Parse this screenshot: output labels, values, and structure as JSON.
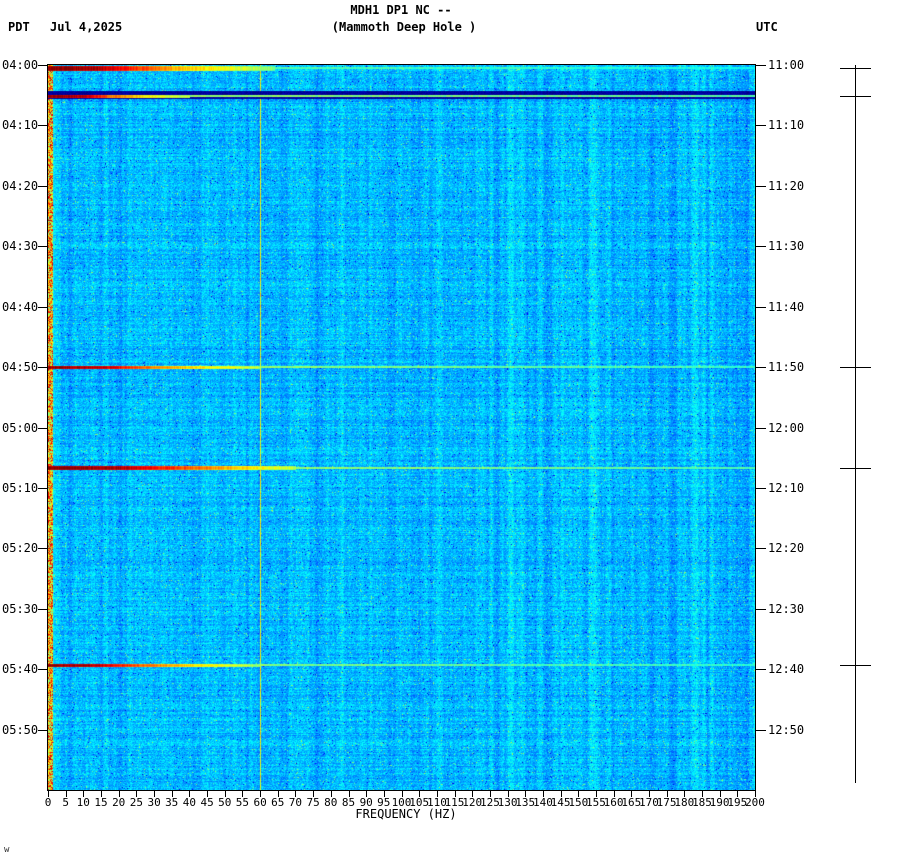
{
  "header": {
    "tz_left": "PDT",
    "date": "Jul 4,2025",
    "title_line1": "MDH1 DP1 NC --",
    "title_line2": "(Mammoth Deep Hole )",
    "tz_right": "UTC"
  },
  "footer": {
    "xlabel": "FREQUENCY (HZ)",
    "watermark": "w"
  },
  "chart_data": {
    "type": "heatmap",
    "subtype": "seismic spectrogram",
    "title": "MDH1 DP1 NC -- (Mammoth Deep Hole )",
    "station": "MDH1 DP1 NC",
    "station_name": "Mammoth Deep Hole",
    "date": "Jul 4,2025",
    "xlabel": "FREQUENCY (HZ)",
    "x_min": 0,
    "x_max": 200,
    "x_ticks": [
      0,
      5,
      10,
      15,
      20,
      25,
      30,
      35,
      40,
      45,
      50,
      55,
      60,
      65,
      70,
      75,
      80,
      85,
      90,
      95,
      100,
      105,
      110,
      115,
      120,
      125,
      130,
      135,
      140,
      145,
      150,
      155,
      160,
      165,
      170,
      175,
      180,
      185,
      190,
      195,
      200
    ],
    "powerline_hz": 60,
    "colormap": "jet",
    "background_level": "low-power blue noise",
    "total_minutes": 120,
    "minutes_per_tick": 10,
    "time_axis_left": {
      "timezone": "PDT",
      "tick_labels": [
        "04:00",
        "04:10",
        "04:20",
        "04:30",
        "04:40",
        "04:50",
        "05:00",
        "05:10",
        "05:20",
        "05:30",
        "05:40",
        "05:50"
      ]
    },
    "time_axis_right": {
      "timezone": "UTC",
      "tick_labels": [
        "11:00",
        "11:10",
        "11:20",
        "11:30",
        "11:40",
        "11:50",
        "12:00",
        "12:10",
        "12:20",
        "12:30",
        "12:40",
        "12:50"
      ]
    },
    "quiet_band": {
      "time_pdt": "04:04",
      "t_frac_start": 0.036,
      "t_frac_end": 0.046,
      "v_max": 0.06,
      "description": "dark low-power band across all frequencies just before 04:05 event"
    },
    "events": [
      {
        "time_pdt": "04:00",
        "time_utc": "11:00",
        "t_frac": 0.004,
        "thickness": 5,
        "tail_thickness": 2,
        "tail_start": 0.32,
        "stops": [
          [
            0,
            1.0
          ],
          [
            0.07,
            0.96
          ],
          [
            0.12,
            0.84
          ],
          [
            0.18,
            0.7
          ],
          [
            0.26,
            0.6
          ],
          [
            0.32,
            0.5
          ],
          [
            1,
            0.43
          ]
        ],
        "description": "broadband event, strongest below ~35 Hz"
      },
      {
        "time_pdt": "04:05",
        "time_utc": "11:05",
        "t_frac": 0.0425,
        "thickness": 3,
        "tail_thickness": 2,
        "tail_start": 0.2,
        "stops": [
          [
            0,
            1.0
          ],
          [
            0.05,
            0.95
          ],
          [
            0.09,
            0.78
          ],
          [
            0.14,
            0.66
          ],
          [
            0.2,
            0.56
          ],
          [
            1,
            0.5
          ]
        ],
        "description": "event with bright cyan tail across full band inside dark band"
      },
      {
        "time_pdt": "04:50",
        "time_utc": "11:50",
        "t_frac": 0.4165,
        "thickness": 3,
        "tail_thickness": 2,
        "tail_start": 0.3,
        "stops": [
          [
            0,
            1.0
          ],
          [
            0.08,
            0.94
          ],
          [
            0.13,
            0.8
          ],
          [
            0.2,
            0.68
          ],
          [
            0.3,
            0.56
          ],
          [
            1,
            0.47
          ]
        ],
        "description": "broadband event, red core to ~25 Hz"
      },
      {
        "time_pdt": "05:07",
        "time_utc": "12:07",
        "t_frac": 0.5555,
        "thickness": 4,
        "tail_thickness": 2,
        "tail_start": 0.35,
        "stops": [
          [
            0,
            1.0
          ],
          [
            0.1,
            0.96
          ],
          [
            0.17,
            0.84
          ],
          [
            0.26,
            0.7
          ],
          [
            0.35,
            0.56
          ],
          [
            1,
            0.49
          ]
        ],
        "description": "strongest event, red/orange core to ~50 Hz, pale tail to 200 Hz"
      },
      {
        "time_pdt": "05:40",
        "time_utc": "12:40",
        "t_frac": 0.8275,
        "thickness": 3,
        "tail_thickness": 2,
        "tail_start": 0.3,
        "stops": [
          [
            0,
            1.0
          ],
          [
            0.07,
            0.95
          ],
          [
            0.13,
            0.8
          ],
          [
            0.21,
            0.66
          ],
          [
            0.3,
            0.54
          ],
          [
            1,
            0.46
          ]
        ],
        "description": "broadband event, red core to ~20 Hz"
      }
    ],
    "low_freq_band": {
      "max_hz": 2,
      "description": "persistent high energy at lowest frequencies"
    },
    "render_seed": 1234567
  }
}
